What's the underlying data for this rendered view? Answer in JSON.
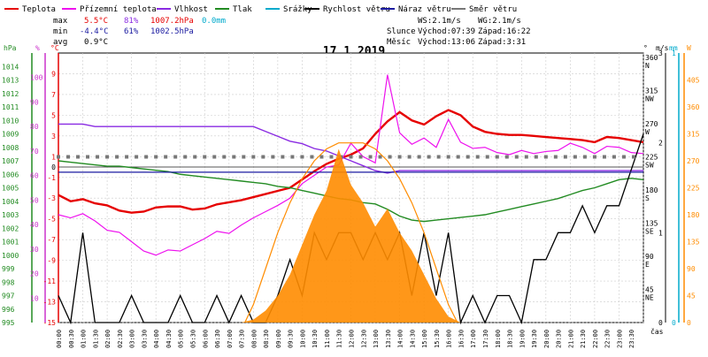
{
  "legend": [
    {
      "label": "Teplota",
      "color": "#e60000"
    },
    {
      "label": "Přízemní teplota",
      "color": "#ee11ee"
    },
    {
      "label": "Vlhkost",
      "color": "#8a2be2"
    },
    {
      "label": "Tlak",
      "color": "#228b22"
    },
    {
      "label": "Srážky",
      "color": "#00aacc"
    },
    {
      "label": "Rychlost větru",
      "color": "#000000"
    },
    {
      "label": "Náraz větru",
      "color": "#1a1aa0"
    },
    {
      "label": "Směr větru",
      "color": "#777777"
    }
  ],
  "stats": {
    "max": {
      "label": "max",
      "temp": "5.5°C",
      "hum": "81%",
      "press": "1007.2hPa",
      "rain": "0.0mm"
    },
    "min": {
      "label": "min",
      "temp": "-4.4°C",
      "hum": "61%",
      "press": "1002.5hPa"
    },
    "avg": {
      "label": "avg",
      "temp": "0.9°C"
    }
  },
  "sun": {
    "ws": "WS:2.1m/s",
    "wg": "WG:2.1m/s",
    "sun_label": "Slunce",
    "sunrise": "Východ:07:39",
    "sunset": "Západ:16:22",
    "moon_label": "Měsíc",
    "moonrise": "Východ:13:06",
    "moonset": "Západ:3:31"
  },
  "chart_data": {
    "type": "line",
    "title": "17.1.2019",
    "xlabel": "čas",
    "x_ticks": [
      "00:00",
      "00:30",
      "01:00",
      "01:30",
      "02:00",
      "02:30",
      "03:00",
      "03:30",
      "04:00",
      "04:30",
      "05:00",
      "05:30",
      "06:00",
      "06:30",
      "07:00",
      "07:30",
      "08:00",
      "08:30",
      "09:00",
      "09:30",
      "10:00",
      "10:30",
      "11:00",
      "11:30",
      "12:00",
      "12:30",
      "13:00",
      "13:30",
      "14:00",
      "14:30",
      "15:00",
      "15:30",
      "16:00",
      "16:30",
      "17:00",
      "17:30",
      "18:00",
      "18:30",
      "19:00",
      "19:30",
      "20:00",
      "20:30",
      "21:00",
      "21:30",
      "22:00",
      "22:30",
      "23:00",
      "23:30"
    ],
    "axes": {
      "pressure": {
        "label": "hPa",
        "range": [
          995,
          1015
        ],
        "ticks": [
          "995",
          "996",
          "997",
          "998",
          "999",
          "1000",
          "1001",
          "1002",
          "1003",
          "1004",
          "1005",
          "1006",
          "1007",
          "1008",
          "1009",
          "1010",
          "1011",
          "1012",
          "1013",
          "1014"
        ]
      },
      "humidity": {
        "label": "%",
        "range": [
          0,
          110
        ],
        "ticks": [
          "10",
          "20",
          "30",
          "40",
          "50",
          "60",
          "70",
          "80",
          "90",
          "100"
        ]
      },
      "temperature": {
        "label": "°C",
        "range": [
          -15,
          11
        ],
        "ticks": [
          "-15",
          "-13",
          "-11",
          "-9",
          "-7",
          "-5",
          "-3",
          "-1",
          "1",
          "3",
          "5",
          "7",
          "9"
        ],
        "extra_ticks": [
          "0"
        ]
      },
      "direction": {
        "label": "°",
        "ticks": [
          "45",
          "90",
          "135",
          "180",
          "225",
          "270",
          "315",
          "360"
        ],
        "compass": [
          "NE",
          "E",
          "SE",
          "S",
          "SW",
          "W",
          "NW",
          "N"
        ]
      },
      "wind": {
        "label": "m/s",
        "range": [
          0,
          3
        ],
        "ticks": [
          "0",
          "1",
          "2",
          "3"
        ]
      },
      "rain": {
        "label": "mm",
        "range": [
          0,
          1
        ],
        "ticks": [
          "0",
          "1"
        ]
      },
      "solar": {
        "label": "W",
        "range": [
          0,
          450
        ],
        "ticks": [
          "0",
          "45",
          "90",
          "135",
          "180",
          "225",
          "270",
          "315",
          "360",
          "405"
        ]
      }
    },
    "series": [
      {
        "name": "Teplota",
        "color": "#e60000",
        "axis": "temperature",
        "x": [
          0,
          0.5,
          1,
          1.5,
          2,
          2.5,
          3,
          3.5,
          4,
          4.5,
          5,
          5.5,
          6,
          6.5,
          7,
          7.5,
          8,
          8.5,
          9,
          9.5,
          10,
          10.5,
          11,
          11.5,
          12,
          12.5,
          13,
          13.5,
          14,
          14.5,
          15,
          15.5,
          16,
          16.5,
          17,
          17.5,
          18,
          18.5,
          19,
          19.5,
          20,
          20.5,
          21,
          21.5,
          22,
          22.5,
          23,
          23.5,
          24
        ],
        "values": [
          -2.7,
          -3.3,
          -3.1,
          -3.5,
          -3.7,
          -4.2,
          -4.4,
          -4.3,
          -3.9,
          -3.8,
          -3.8,
          -4.1,
          -4.0,
          -3.6,
          -3.4,
          -3.2,
          -2.9,
          -2.6,
          -2.3,
          -2.0,
          -1.2,
          -0.4,
          0.3,
          0.8,
          1.2,
          1.8,
          3.2,
          4.4,
          5.3,
          4.5,
          4.1,
          4.9,
          5.5,
          5.0,
          3.9,
          3.4,
          3.2,
          3.1,
          3.1,
          3.0,
          2.9,
          2.8,
          2.7,
          2.6,
          2.4,
          2.9,
          2.8,
          2.6,
          2.4
        ]
      },
      {
        "name": "Přízemní teplota",
        "color": "#ee11ee",
        "axis": "temperature",
        "x": [
          0,
          0.5,
          1,
          1.5,
          2,
          2.5,
          3,
          3.5,
          4,
          4.5,
          5,
          5.5,
          6,
          6.5,
          7,
          7.5,
          8,
          8.5,
          9,
          9.5,
          10,
          10.5,
          11,
          11.5,
          12,
          12.5,
          13,
          13.5,
          14,
          14.5,
          15,
          15.5,
          16,
          16.5,
          17,
          17.5,
          18,
          18.5,
          19,
          19.5,
          20,
          20.5,
          21,
          21.5,
          22,
          22.5,
          23,
          23.5,
          24
        ],
        "values": [
          -4.6,
          -4.9,
          -4.5,
          -5.2,
          -6.1,
          -6.3,
          -7.2,
          -8.1,
          -8.5,
          -8.0,
          -8.1,
          -7.5,
          -6.9,
          -6.2,
          -6.4,
          -5.6,
          -4.9,
          -4.3,
          -3.7,
          -3.0,
          -1.6,
          -0.8,
          0.0,
          0.2,
          2.3,
          1.0,
          0.4,
          8.9,
          3.3,
          2.2,
          2.8,
          1.9,
          4.6,
          2.4,
          1.8,
          1.9,
          1.4,
          1.2,
          1.6,
          1.3,
          1.5,
          1.6,
          2.3,
          1.9,
          1.3,
          2.0,
          1.9,
          1.4,
          1.3
        ]
      },
      {
        "name": "Vlhkost",
        "color": "#8a2be2",
        "axis": "humidity",
        "x": [
          0,
          0.5,
          1,
          1.5,
          2,
          2.5,
          3,
          3.5,
          4,
          4.5,
          5,
          5.5,
          6,
          6.5,
          7,
          7.5,
          8,
          8.5,
          9,
          9.5,
          10,
          10.5,
          11,
          11.5,
          12,
          12.5,
          13,
          13.5,
          14,
          14.5,
          15,
          15.5,
          16,
          16.5,
          17,
          17.5,
          18,
          18.5,
          19,
          19.5,
          20,
          20.5,
          21,
          21.5,
          22,
          22.5,
          23,
          23.5,
          24
        ],
        "values": [
          81,
          81,
          81,
          80,
          80,
          80,
          80,
          80,
          80,
          80,
          80,
          80,
          80,
          80,
          80,
          80,
          80,
          78,
          76,
          74,
          73,
          71,
          70,
          68,
          66,
          64,
          62,
          61,
          62,
          62,
          62,
          62,
          62,
          62,
          62,
          62,
          62,
          62,
          62,
          62,
          62,
          62,
          62,
          62,
          62,
          62,
          62,
          62,
          62
        ]
      },
      {
        "name": "Tlak",
        "color": "#228b22",
        "axis": "pressure",
        "x": [
          0,
          0.5,
          1,
          1.5,
          2,
          2.5,
          3,
          3.5,
          4,
          4.5,
          5,
          5.5,
          6,
          6.5,
          7,
          7.5,
          8,
          8.5,
          9,
          9.5,
          10,
          10.5,
          11,
          11.5,
          12,
          12.5,
          13,
          13.5,
          14,
          14.5,
          15,
          15.5,
          16,
          16.5,
          17,
          17.5,
          18,
          18.5,
          19,
          19.5,
          20,
          20.5,
          21,
          21.5,
          22,
          22.5,
          23,
          23.5,
          24
        ],
        "values": [
          1007.0,
          1006.9,
          1006.8,
          1006.7,
          1006.6,
          1006.6,
          1006.5,
          1006.4,
          1006.3,
          1006.2,
          1006.0,
          1005.9,
          1005.8,
          1005.7,
          1005.6,
          1005.5,
          1005.4,
          1005.3,
          1005.1,
          1005.0,
          1004.8,
          1004.6,
          1004.4,
          1004.2,
          1004.1,
          1003.9,
          1003.8,
          1003.4,
          1002.9,
          1002.6,
          1002.5,
          1002.6,
          1002.7,
          1002.8,
          1002.9,
          1003.0,
          1003.2,
          1003.4,
          1003.6,
          1003.8,
          1004.0,
          1004.2,
          1004.5,
          1004.8,
          1005.0,
          1005.3,
          1005.6,
          1005.7,
          1005.6
        ]
      },
      {
        "name": "Rychlost větru",
        "color": "#000000",
        "axis": "wind",
        "x": [
          0,
          0.5,
          1,
          1.5,
          2,
          2.5,
          3,
          3.5,
          4,
          4.5,
          5,
          5.5,
          6,
          6.5,
          7,
          7.5,
          8,
          8.5,
          9,
          9.5,
          10,
          10.5,
          11,
          11.5,
          12,
          12.5,
          13,
          13.5,
          14,
          14.5,
          15,
          15.5,
          16,
          16.5,
          17,
          17.5,
          18,
          18.5,
          19,
          19.5,
          20,
          20.5,
          21,
          21.5,
          22,
          22.5,
          23,
          23.5,
          24
        ],
        "values": [
          0.3,
          0,
          1.0,
          0,
          0,
          0,
          0.3,
          0,
          0,
          0,
          0.3,
          0,
          0,
          0.3,
          0,
          0.3,
          0,
          0,
          0.3,
          0.7,
          0.3,
          1.0,
          0.7,
          1.0,
          1.0,
          0.7,
          1.0,
          0.7,
          1.0,
          0.3,
          1.0,
          0.3,
          1.0,
          0,
          0.3,
          0,
          0.3,
          0.3,
          0,
          0.7,
          0.7,
          1.0,
          1.0,
          1.3,
          1.0,
          1.3,
          1.3,
          1.7,
          2.1
        ]
      },
      {
        "name": "Náraz větru",
        "color": "#1a1aa0",
        "axis": "temperature",
        "x": [
          0,
          0.5,
          1,
          1.5,
          2,
          2.5,
          3,
          3.5,
          4,
          4.5,
          5,
          5.5,
          6,
          6.5,
          7,
          7.5,
          8,
          8.5,
          9,
          9.5,
          10,
          10.5,
          11,
          11.5,
          12,
          12.5,
          13,
          13.5,
          14,
          14.5,
          15,
          15.5,
          16,
          16.5,
          17,
          17.5,
          18,
          18.5,
          19,
          19.5,
          20,
          20.5,
          21,
          21.5,
          22,
          22.5,
          23,
          23.5,
          24
        ],
        "values": [
          -0.5,
          -0.5,
          -0.5,
          -0.5,
          -0.5,
          -0.5,
          -0.5,
          -0.5,
          -0.5,
          -0.5,
          -0.5,
          -0.5,
          -0.5,
          -0.5,
          -0.5,
          -0.5,
          -0.5,
          -0.5,
          -0.5,
          -0.5,
          -0.5,
          -0.5,
          -0.5,
          -0.5,
          -0.5,
          -0.5,
          -0.5,
          -0.5,
          -0.5,
          -0.5,
          -0.5,
          -0.5,
          -0.5,
          -0.5,
          -0.5,
          -0.5,
          -0.5,
          -0.5,
          -0.5,
          -0.5,
          -0.5,
          -0.5,
          -0.5,
          -0.5,
          -0.5,
          -0.5,
          -0.5,
          -0.5,
          -0.5
        ]
      },
      {
        "name": "Směr větru",
        "color": "#777777",
        "axis": "direction",
        "type": "scatter",
        "x": [
          0,
          0.4,
          0.8,
          1.2,
          1.6,
          2.0,
          2.4,
          2.8,
          3.2,
          3.6,
          4.0,
          4.4,
          4.8,
          5.2,
          5.6,
          6.0,
          6.4,
          6.8,
          7.2,
          7.6,
          8.0,
          8.4,
          8.8,
          9.2,
          9.6,
          10.0,
          10.4,
          10.8,
          11.2,
          11.6,
          12.0,
          12.4,
          12.8,
          13.2,
          13.6,
          14.0,
          14.4,
          14.8,
          15.2,
          15.6,
          16.0,
          16.4,
          16.8,
          17.2,
          17.6,
          18.0,
          18.4,
          18.8,
          19.2,
          19.6,
          20.0,
          20.4,
          20.8,
          21.2,
          21.6,
          22.0,
          22.4,
          22.8,
          23.2,
          23.6
        ],
        "values": [
          225,
          225,
          225,
          225,
          225,
          225,
          225,
          225,
          225,
          225,
          225,
          225,
          225,
          225,
          225,
          225,
          225,
          225,
          225,
          225,
          225,
          225,
          225,
          225,
          225,
          225,
          225,
          225,
          225,
          225,
          225,
          225,
          225,
          225,
          225,
          225,
          225,
          225,
          225,
          225,
          225,
          225,
          225,
          225,
          225,
          225,
          225,
          225,
          225,
          225,
          225,
          225,
          225,
          225,
          225,
          225,
          225,
          225,
          225,
          225
        ]
      },
      {
        "name": "Solar",
        "color": "#ff8c00",
        "axis": "solar",
        "type": "area",
        "x": [
          7.5,
          8,
          8.5,
          9,
          9.5,
          10,
          10.5,
          11,
          11.5,
          12,
          12.5,
          13,
          13.5,
          14,
          14.5,
          15,
          15.5,
          16,
          16.5
        ],
        "values": [
          0,
          5,
          20,
          45,
          80,
          130,
          180,
          220,
          290,
          230,
          200,
          160,
          190,
          150,
          120,
          80,
          40,
          10,
          0
        ]
      },
      {
        "name": "Sun path",
        "color": "#ff8c00",
        "axis": "solar",
        "type": "line",
        "x": [
          7.65,
          8,
          8.5,
          9,
          9.5,
          10,
          10.5,
          11,
          11.5,
          12,
          12.5,
          13,
          13.5,
          14,
          14.5,
          15,
          15.5,
          16,
          16.37
        ],
        "values": [
          0,
          30,
          90,
          150,
          200,
          240,
          270,
          290,
          300,
          300,
          300,
          290,
          270,
          240,
          200,
          150,
          90,
          30,
          0
        ]
      }
    ]
  }
}
